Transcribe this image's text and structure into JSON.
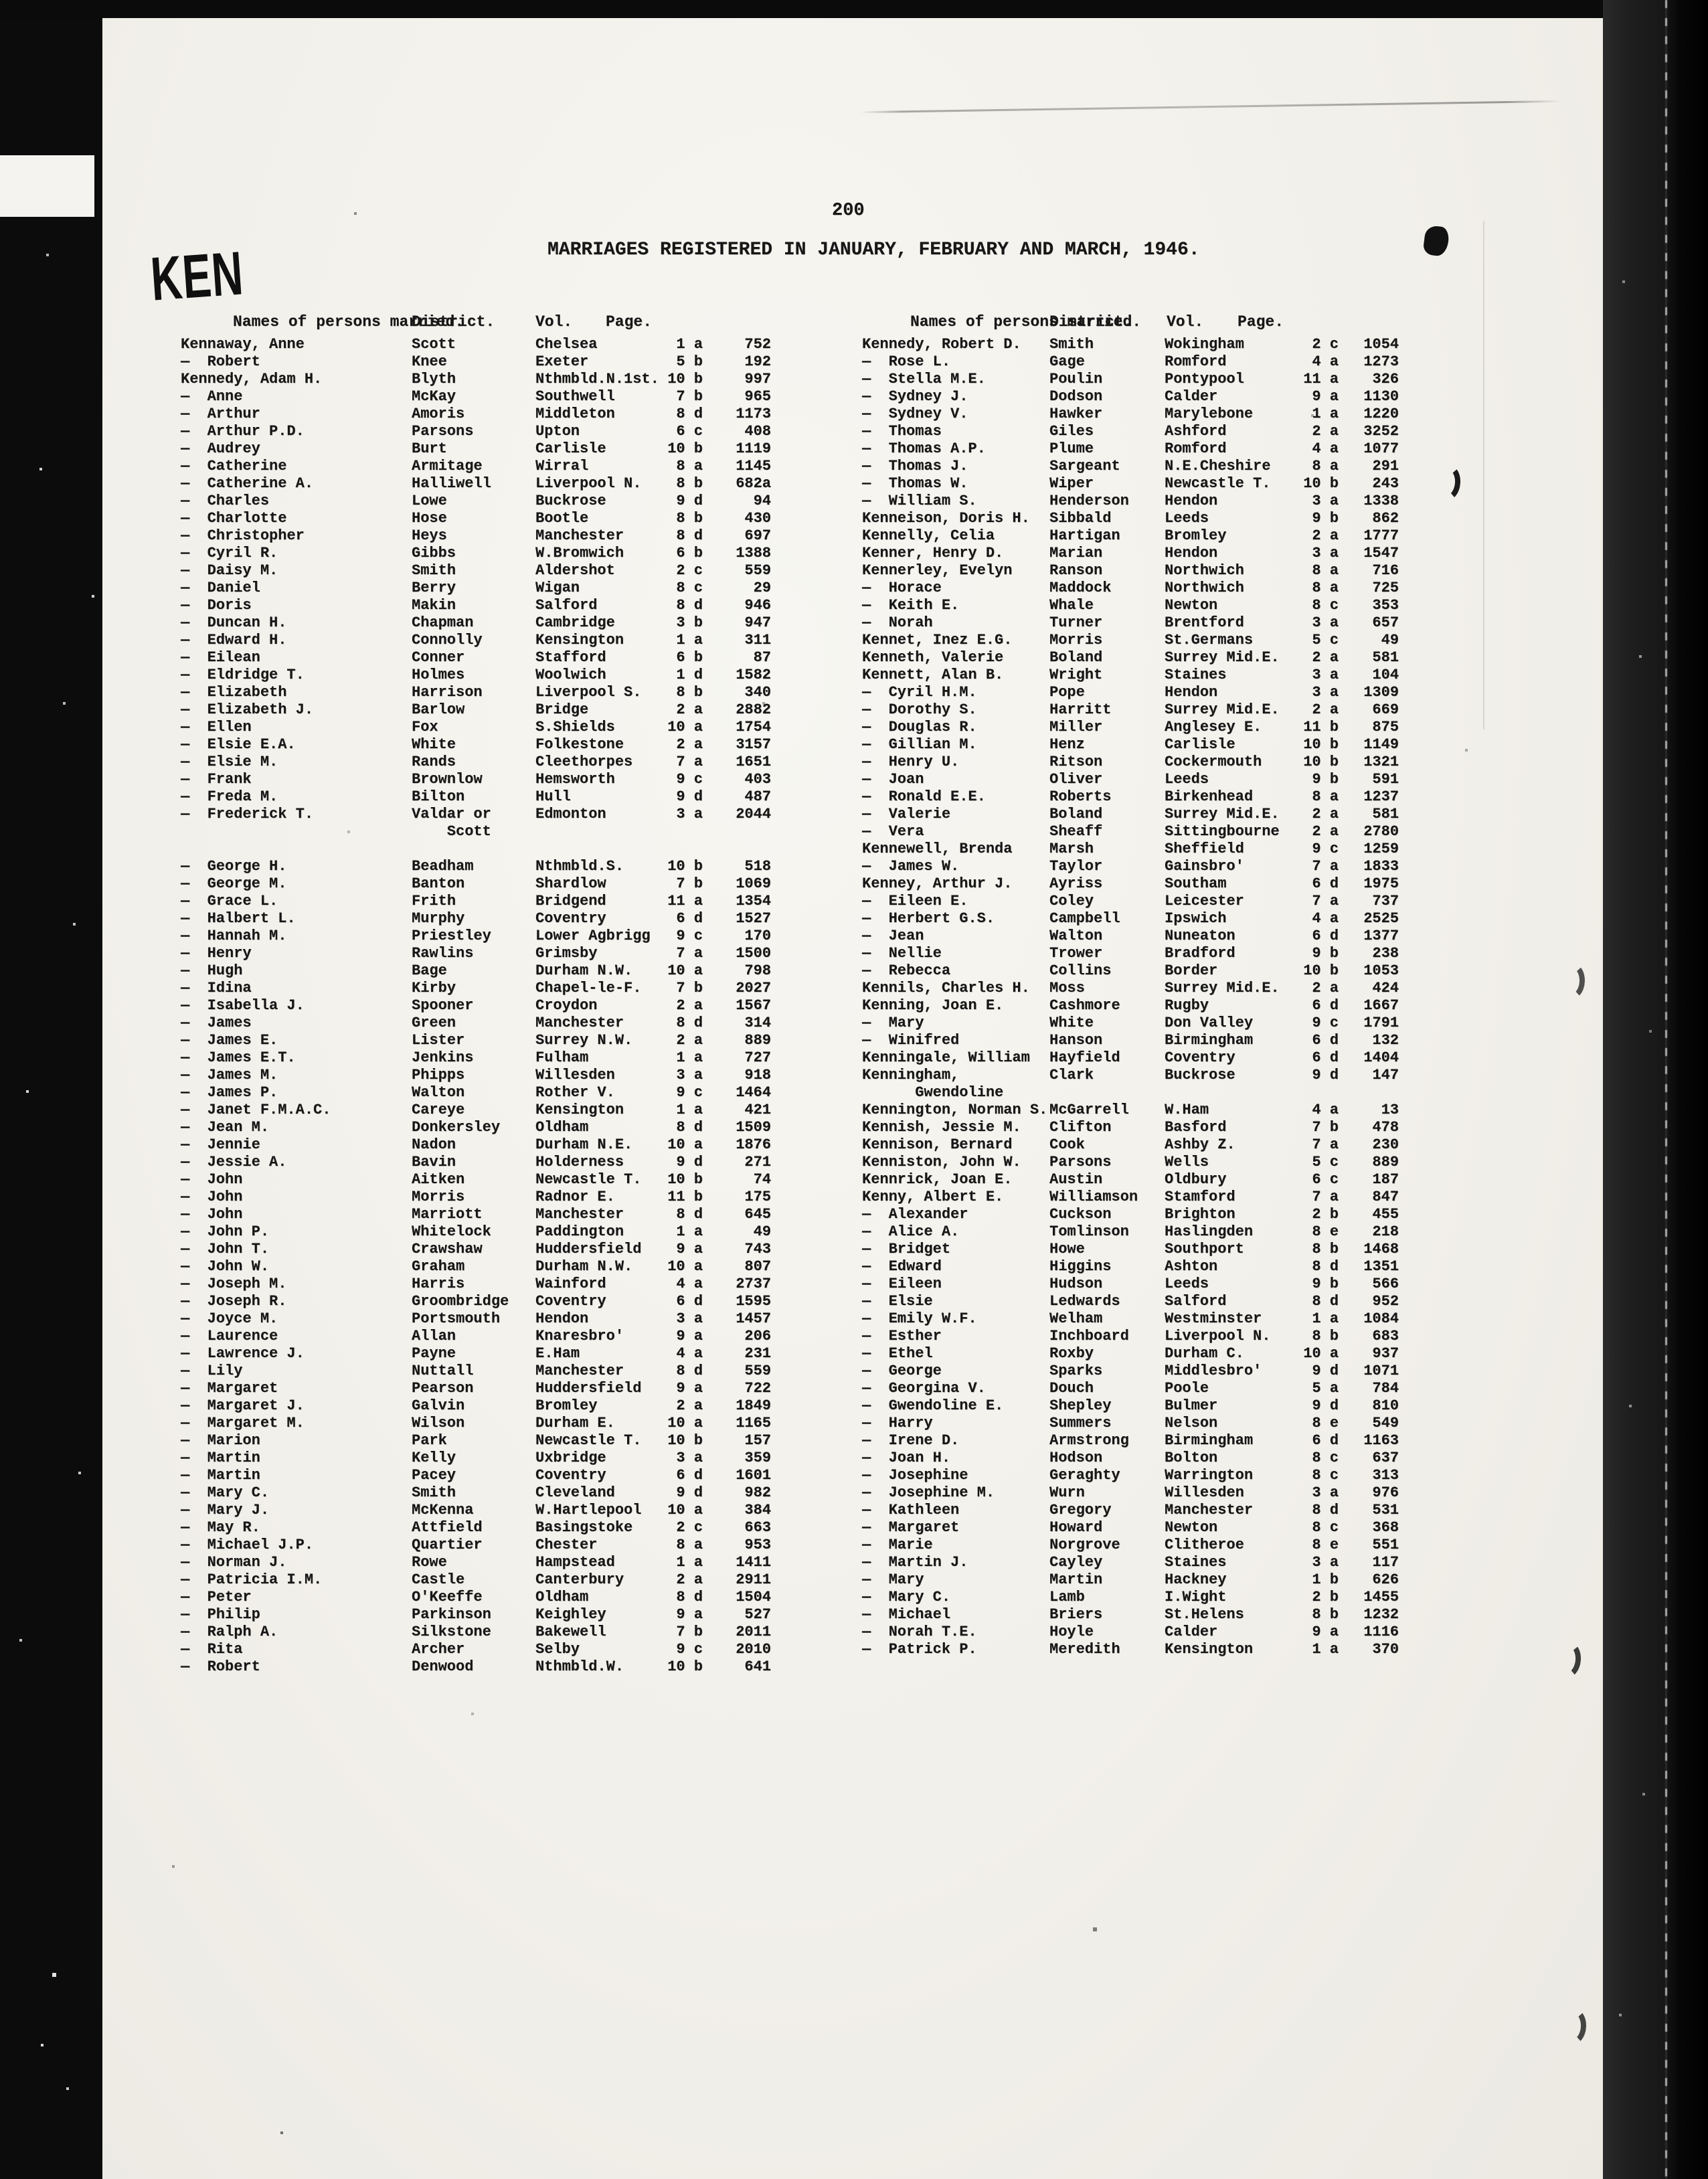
{
  "page": {
    "stamp": "KEN",
    "page_number": "200",
    "title": "MARRIAGES REGISTERED IN JANUARY, FEBRUARY AND MARCH, 1946."
  },
  "table": {
    "headers": {
      "names": "Names of persons married.",
      "district": "District.",
      "vol": "Vol.",
      "page": "Page."
    },
    "left_rows": [
      [
        "Kennaway, Anne",
        "Scott",
        "Chelsea",
        "1 a",
        "752"
      ],
      [
        "—  Robert",
        "Knee",
        "Exeter",
        "5 b",
        "192"
      ],
      [
        "Kennedy, Adam H.",
        "Blyth",
        "Nthmbld.N.1st.",
        "10 b",
        "997"
      ],
      [
        "—  Anne",
        "McKay",
        "Southwell",
        "7 b",
        "965"
      ],
      [
        "—  Arthur",
        "Amoris",
        "Middleton",
        "8 d",
        "1173"
      ],
      [
        "—  Arthur P.D.",
        "Parsons",
        "Upton",
        "6 c",
        "408"
      ],
      [
        "—  Audrey",
        "Burt",
        "Carlisle",
        "10 b",
        "1119"
      ],
      [
        "—  Catherine",
        "Armitage",
        "Wirral",
        "8 a",
        "1145"
      ],
      [
        "—  Catherine A.",
        "Halliwell",
        "Liverpool N.",
        "8 b",
        "682a"
      ],
      [
        "—  Charles",
        "Lowe",
        "Buckrose",
        "9 d",
        "94"
      ],
      [
        "—  Charlotte",
        "Hose",
        "Bootle",
        "8 b",
        "430"
      ],
      [
        "—  Christopher",
        "Heys",
        "Manchester",
        "8 d",
        "697"
      ],
      [
        "—  Cyril R.",
        "Gibbs",
        "W.Bromwich",
        "6 b",
        "1388"
      ],
      [
        "—  Daisy M.",
        "Smith",
        "Aldershot",
        "2 c",
        "559"
      ],
      [
        "—  Daniel",
        "Berry",
        "Wigan",
        "8 c",
        "29"
      ],
      [
        "—  Doris",
        "Makin",
        "Salford",
        "8 d",
        "946"
      ],
      [
        "—  Duncan H.",
        "Chapman",
        "Cambridge",
        "3 b",
        "947"
      ],
      [
        "—  Edward H.",
        "Connolly",
        "Kensington",
        "1 a",
        "311"
      ],
      [
        "—  Eilean",
        "Conner",
        "Stafford",
        "6 b",
        "87"
      ],
      [
        "—  Eldridge T.",
        "Holmes",
        "Woolwich",
        "1 d",
        "1582"
      ],
      [
        "—  Elizabeth",
        "Harrison",
        "Liverpool S.",
        "8 b",
        "340"
      ],
      [
        "—  Elizabeth J.",
        "Barlow",
        "Bridge",
        "2 a",
        "2882"
      ],
      [
        "—  Ellen",
        "Fox",
        "S.Shields",
        "10 a",
        "1754"
      ],
      [
        "—  Elsie E.A.",
        "White",
        "Folkestone",
        "2 a",
        "3157"
      ],
      [
        "—  Elsie M.",
        "Rands",
        "Cleethorpes",
        "7 a",
        "1651"
      ],
      [
        "—  Frank",
        "Brownlow",
        "Hemsworth",
        "9 c",
        "403"
      ],
      [
        "—  Freda M.",
        "Bilton",
        "Hull",
        "9 d",
        "487"
      ],
      [
        "—  Frederick T.",
        "Valdar or",
        "Edmonton",
        "3 a",
        "2044"
      ],
      [
        "",
        "    Scott",
        "",
        "",
        ""
      ],
      [
        "",
        "",
        "",
        "",
        ""
      ],
      [
        "—  George H.",
        "Beadham",
        "Nthmbld.S.",
        "10 b",
        "518"
      ],
      [
        "—  George M.",
        "Banton",
        "Shardlow",
        "7 b",
        "1069"
      ],
      [
        "—  Grace L.",
        "Frith",
        "Bridgend",
        "11 a",
        "1354"
      ],
      [
        "—  Halbert L.",
        "Murphy",
        "Coventry",
        "6 d",
        "1527"
      ],
      [
        "—  Hannah M.",
        "Priestley",
        "Lower Agbrigg",
        "9 c",
        "170"
      ],
      [
        "—  Henry",
        "Rawlins",
        "Grimsby",
        "7 a",
        "1500"
      ],
      [
        "—  Hugh",
        "Bage",
        "Durham N.W.",
        "10 a",
        "798"
      ],
      [
        "—  Idina",
        "Kirby",
        "Chapel-le-F.",
        "7 b",
        "2027"
      ],
      [
        "—  Isabella J.",
        "Spooner",
        "Croydon",
        "2 a",
        "1567"
      ],
      [
        "—  James",
        "Green",
        "Manchester",
        "8 d",
        "314"
      ],
      [
        "—  James E.",
        "Lister",
        "Surrey N.W.",
        "2 a",
        "889"
      ],
      [
        "—  James E.T.",
        "Jenkins",
        "Fulham",
        "1 a",
        "727"
      ],
      [
        "—  James M.",
        "Phipps",
        "Willesden",
        "3 a",
        "918"
      ],
      [
        "—  James P.",
        "Walton",
        "Rother V.",
        "9 c",
        "1464"
      ],
      [
        "—  Janet F.M.A.C.",
        "Careye",
        "Kensington",
        "1 a",
        "421"
      ],
      [
        "—  Jean M.",
        "Donkersley",
        "Oldham",
        "8 d",
        "1509"
      ],
      [
        "—  Jennie",
        "Nadon",
        "Durham N.E.",
        "10 a",
        "1876"
      ],
      [
        "—  Jessie A.",
        "Bavin",
        "Holderness",
        "9 d",
        "271"
      ],
      [
        "—  John",
        "Aitken",
        "Newcastle T.",
        "10 b",
        "74"
      ],
      [
        "—  John",
        "Morris",
        "Radnor E.",
        "11 b",
        "175"
      ],
      [
        "—  John",
        "Marriott",
        "Manchester",
        "8 d",
        "645"
      ],
      [
        "—  John P.",
        "Whitelock",
        "Paddington",
        "1 a",
        "49"
      ],
      [
        "—  John T.",
        "Crawshaw",
        "Huddersfield",
        "9 a",
        "743"
      ],
      [
        "—  John W.",
        "Graham",
        "Durham N.W.",
        "10 a",
        "807"
      ],
      [
        "—  Joseph M.",
        "Harris",
        "Wainford",
        "4 a",
        "2737"
      ],
      [
        "—  Joseph R.",
        "Groombridge",
        "Coventry",
        "6 d",
        "1595"
      ],
      [
        "—  Joyce M.",
        "Portsmouth",
        "Hendon",
        "3 a",
        "1457"
      ],
      [
        "—  Laurence",
        "Allan",
        "Knaresbro'",
        "9 a",
        "206"
      ],
      [
        "—  Lawrence J.",
        "Payne",
        "E.Ham",
        "4 a",
        "231"
      ],
      [
        "—  Lily",
        "Nuttall",
        "Manchester",
        "8 d",
        "559"
      ],
      [
        "—  Margaret",
        "Pearson",
        "Huddersfield",
        "9 a",
        "722"
      ],
      [
        "—  Margaret J.",
        "Galvin",
        "Bromley",
        "2 a",
        "1849"
      ],
      [
        "—  Margaret M.",
        "Wilson",
        "Durham E.",
        "10 a",
        "1165"
      ],
      [
        "—  Marion",
        "Park",
        "Newcastle T.",
        "10 b",
        "157"
      ],
      [
        "—  Martin",
        "Kelly",
        "Uxbridge",
        "3 a",
        "359"
      ],
      [
        "—  Martin",
        "Pacey",
        "Coventry",
        "6 d",
        "1601"
      ],
      [
        "—  Mary C.",
        "Smith",
        "Cleveland",
        "9 d",
        "982"
      ],
      [
        "—  Mary J.",
        "McKenna",
        "W.Hartlepool",
        "10 a",
        "384"
      ],
      [
        "—  May R.",
        "Attfield",
        "Basingstoke",
        "2 c",
        "663"
      ],
      [
        "—  Michael J.P.",
        "Quartier",
        "Chester",
        "8 a",
        "953"
      ],
      [
        "—  Norman J.",
        "Rowe",
        "Hampstead",
        "1 a",
        "1411"
      ],
      [
        "—  Patricia I.M.",
        "Castle",
        "Canterbury",
        "2 a",
        "2911"
      ],
      [
        "—  Peter",
        "O'Keeffe",
        "Oldham",
        "8 d",
        "1504"
      ],
      [
        "—  Philip",
        "Parkinson",
        "Keighley",
        "9 a",
        "527"
      ],
      [
        "—  Ralph A.",
        "Silkstone",
        "Bakewell",
        "7 b",
        "2011"
      ],
      [
        "—  Rita",
        "Archer",
        "Selby",
        "9 c",
        "2010"
      ],
      [
        "—  Robert",
        "Denwood",
        "Nthmbld.W.",
        "10 b",
        "641"
      ]
    ],
    "right_rows": [
      [
        "Kennedy, Robert D.",
        "Smith",
        "Wokingham",
        "2 c",
        "1054"
      ],
      [
        "—  Rose L.",
        "Gage",
        "Romford",
        "4 a",
        "1273"
      ],
      [
        "—  Stella M.E.",
        "Poulin",
        "Pontypool",
        "11 a",
        "326"
      ],
      [
        "—  Sydney J.",
        "Dodson",
        "Calder",
        "9 a",
        "1130"
      ],
      [
        "—  Sydney V.",
        "Hawker",
        "Marylebone",
        "1 a",
        "1220"
      ],
      [
        "—  Thomas",
        "Giles",
        "Ashford",
        "2 a",
        "3252"
      ],
      [
        "—  Thomas A.P.",
        "Plume",
        "Romford",
        "4 a",
        "1077"
      ],
      [
        "—  Thomas J.",
        "Sargeant",
        "N.E.Cheshire",
        "8 a",
        "291"
      ],
      [
        "—  Thomas W.",
        "Wiper",
        "Newcastle T.",
        "10 b",
        "243"
      ],
      [
        "—  William S.",
        "Henderson",
        "Hendon",
        "3 a",
        "1338"
      ],
      [
        "Kenneison, Doris H.",
        "Sibbald",
        "Leeds",
        "9 b",
        "862"
      ],
      [
        "Kennelly, Celia",
        "Hartigan",
        "Bromley",
        "2 a",
        "1777"
      ],
      [
        "Kenner, Henry D.",
        "Marian",
        "Hendon",
        "3 a",
        "1547"
      ],
      [
        "Kennerley, Evelyn",
        "Ranson",
        "Northwich",
        "8 a",
        "716"
      ],
      [
        "—  Horace",
        "Maddock",
        "Northwich",
        "8 a",
        "725"
      ],
      [
        "—  Keith E.",
        "Whale",
        "Newton",
        "8 c",
        "353"
      ],
      [
        "—  Norah",
        "Turner",
        "Brentford",
        "3 a",
        "657"
      ],
      [
        "Kennet, Inez E.G.",
        "Morris",
        "St.Germans",
        "5 c",
        "49"
      ],
      [
        "Kenneth, Valerie",
        "Boland",
        "Surrey Mid.E.",
        "2 a",
        "581"
      ],
      [
        "Kennett, Alan B.",
        "Wright",
        "Staines",
        "3 a",
        "104"
      ],
      [
        "—  Cyril H.M.",
        "Pope",
        "Hendon",
        "3 a",
        "1309"
      ],
      [
        "—  Dorothy S.",
        "Harritt",
        "Surrey Mid.E.",
        "2 a",
        "669"
      ],
      [
        "—  Douglas R.",
        "Miller",
        "Anglesey E.",
        "11 b",
        "875"
      ],
      [
        "—  Gillian M.",
        "Henz",
        "Carlisle",
        "10 b",
        "1149"
      ],
      [
        "—  Henry U.",
        "Ritson",
        "Cockermouth",
        "10 b",
        "1321"
      ],
      [
        "—  Joan",
        "Oliver",
        "Leeds",
        "9 b",
        "591"
      ],
      [
        "—  Ronald E.E.",
        "Roberts",
        "Birkenhead",
        "8 a",
        "1237"
      ],
      [
        "—  Valerie",
        "Boland",
        "Surrey Mid.E.",
        "2 a",
        "581"
      ],
      [
        "—  Vera",
        "Sheaff",
        "Sittingbourne",
        "2 a",
        "2780"
      ],
      [
        "Kennewell, Brenda",
        "Marsh",
        "Sheffield",
        "9 c",
        "1259"
      ],
      [
        "—  James W.",
        "Taylor",
        "Gainsbro'",
        "7 a",
        "1833"
      ],
      [
        "Kenney, Arthur J.",
        "Ayriss",
        "Southam",
        "6 d",
        "1975"
      ],
      [
        "—  Eileen E.",
        "Coley",
        "Leicester",
        "7 a",
        "737"
      ],
      [
        "—  Herbert G.S.",
        "Campbell",
        "Ipswich",
        "4 a",
        "2525"
      ],
      [
        "—  Jean",
        "Walton",
        "Nuneaton",
        "6 d",
        "1377"
      ],
      [
        "—  Nellie",
        "Trower",
        "Bradford",
        "9 b",
        "238"
      ],
      [
        "—  Rebecca",
        "Collins",
        "Border",
        "10 b",
        "1053"
      ],
      [
        "Kennils, Charles H.",
        "Moss",
        "Surrey Mid.E.",
        "2 a",
        "424"
      ],
      [
        "Kenning, Joan E.",
        "Cashmore",
        "Rugby",
        "6 d",
        "1667"
      ],
      [
        "—  Mary",
        "White",
        "Don Valley",
        "9 c",
        "1791"
      ],
      [
        "—  Winifred",
        "Hanson",
        "Birmingham",
        "6 d",
        "132"
      ],
      [
        "Kenningale, William",
        "Hayfield",
        "Coventry",
        "6 d",
        "1404"
      ],
      [
        "Kenningham,",
        "Clark",
        "Buckrose",
        "9 d",
        "147"
      ],
      [
        "      Gwendoline",
        "",
        "",
        "",
        ""
      ],
      [
        "Kennington, Norman S.",
        "McGarrell",
        "W.Ham",
        "4 a",
        "13"
      ],
      [
        "Kennish, Jessie M.",
        "Clifton",
        "Basford",
        "7 b",
        "478"
      ],
      [
        "Kennison, Bernard",
        "Cook",
        "Ashby Z.",
        "7 a",
        "230"
      ],
      [
        "Kenniston, John W.",
        "Parsons",
        "Wells",
        "5 c",
        "889"
      ],
      [
        "Kennrick, Joan E.",
        "Austin",
        "Oldbury",
        "6 c",
        "187"
      ],
      [
        "Kenny, Albert E.",
        "Williamson",
        "Stamford",
        "7 a",
        "847"
      ],
      [
        "—  Alexander",
        "Cuckson",
        "Brighton",
        "2 b",
        "455"
      ],
      [
        "—  Alice A.",
        "Tomlinson",
        "Haslingden",
        "8 e",
        "218"
      ],
      [
        "—  Bridget",
        "Howe",
        "Southport",
        "8 b",
        "1468"
      ],
      [
        "—  Edward",
        "Higgins",
        "Ashton",
        "8 d",
        "1351"
      ],
      [
        "—  Eileen",
        "Hudson",
        "Leeds",
        "9 b",
        "566"
      ],
      [
        "—  Elsie",
        "Ledwards",
        "Salford",
        "8 d",
        "952"
      ],
      [
        "—  Emily W.F.",
        "Welham",
        "Westminster",
        "1 a",
        "1084"
      ],
      [
        "—  Esther",
        "Inchboard",
        "Liverpool N.",
        "8 b",
        "683"
      ],
      [
        "—  Ethel",
        "Roxby",
        "Durham C.",
        "10 a",
        "937"
      ],
      [
        "—  George",
        "Sparks",
        "Middlesbro'",
        "9 d",
        "1071"
      ],
      [
        "—  Georgina V.",
        "Douch",
        "Poole",
        "5 a",
        "784"
      ],
      [
        "—  Gwendoline E.",
        "Shepley",
        "Bulmer",
        "9 d",
        "810"
      ],
      [
        "—  Harry",
        "Summers",
        "Nelson",
        "8 e",
        "549"
      ],
      [
        "—  Irene D.",
        "Armstrong",
        "Birmingham",
        "6 d",
        "1163"
      ],
      [
        "—  Joan H.",
        "Hodson",
        "Bolton",
        "8 c",
        "637"
      ],
      [
        "—  Josephine",
        "Geraghty",
        "Warrington",
        "8 c",
        "313"
      ],
      [
        "—  Josephine M.",
        "Wurn",
        "Willesden",
        "3 a",
        "976"
      ],
      [
        "—  Kathleen",
        "Gregory",
        "Manchester",
        "8 d",
        "531"
      ],
      [
        "—  Margaret",
        "Howard",
        "Newton",
        "8 c",
        "368"
      ],
      [
        "—  Marie",
        "Norgrove",
        "Clitheroe",
        "8 e",
        "551"
      ],
      [
        "—  Martin J.",
        "Cayley",
        "Staines",
        "3 a",
        "117"
      ],
      [
        "—  Mary",
        "Martin",
        "Hackney",
        "1 b",
        "626"
      ],
      [
        "—  Mary C.",
        "Lamb",
        "I.Wight",
        "2 b",
        "1455"
      ],
      [
        "—  Michael",
        "Briers",
        "St.Helens",
        "8 b",
        "1232"
      ],
      [
        "—  Norah T.E.",
        "Hoyle",
        "Calder",
        "9 a",
        "1116"
      ],
      [
        "—  Patrick P.",
        "Meredith",
        "Kensington",
        "1 a",
        "370"
      ]
    ]
  }
}
